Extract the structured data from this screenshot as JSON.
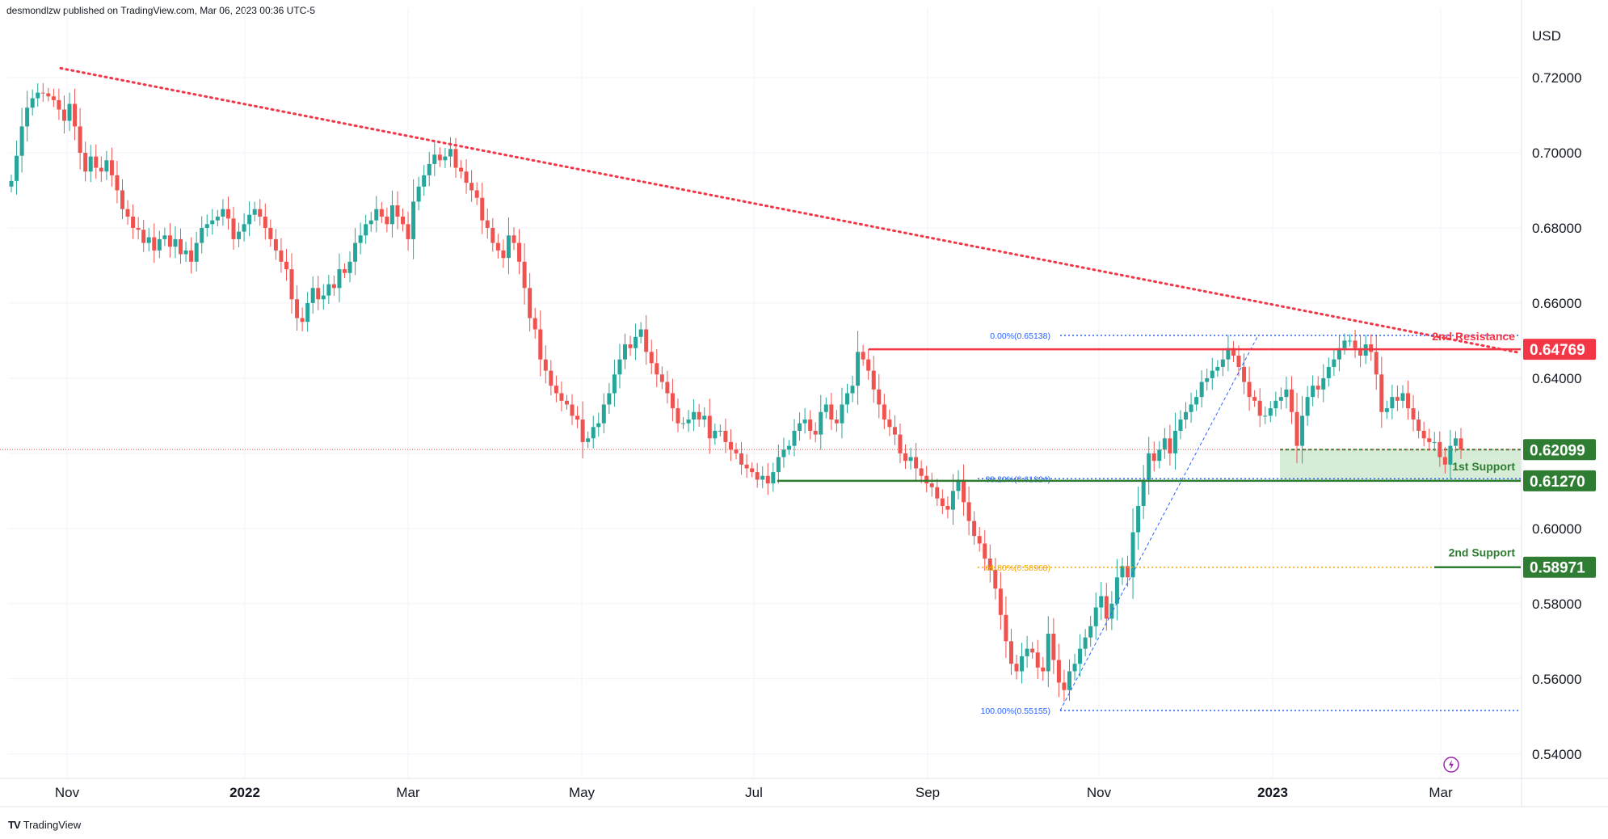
{
  "header": {
    "text": "desmondlzw published on TradingView.com, Mar 06, 2023 00:36 UTC-5"
  },
  "footer": {
    "logo": "TV",
    "brand": "TradingView"
  },
  "colors": {
    "up": "#26a69a",
    "down": "#ef5350",
    "resistance": "#f23645",
    "support": "#2e7d32",
    "fib": "#2962ff",
    "fib_golden": "#f7a600",
    "zone": "#c8e6c9",
    "grid": "#f0f3fa"
  },
  "chart_data": {
    "type": "candlestick",
    "currency_label": "USD",
    "y_ticks": [
      "0.72000",
      "0.70000",
      "0.68000",
      "0.66000",
      "0.64000",
      "0.62000",
      "0.60000",
      "0.58000",
      "0.56000",
      "0.54000"
    ],
    "ylim": [
      0.5335,
      0.7385
    ],
    "x_ticks": [
      "Nov",
      "2022",
      "Mar",
      "May",
      "Jul",
      "Sep",
      "Nov",
      "2023",
      "Mar"
    ],
    "x_ticks_bold": [
      "2022",
      "2023"
    ],
    "close_series": [
      0.6925,
      0.6992,
      0.707,
      0.712,
      0.7145,
      0.716,
      0.7158,
      0.715,
      0.714,
      0.7115,
      0.7085,
      0.713,
      0.707,
      0.7,
      0.695,
      0.699,
      0.696,
      0.695,
      0.698,
      0.694,
      0.69,
      0.685,
      0.683,
      0.68,
      0.6795,
      0.676,
      0.6775,
      0.674,
      0.677,
      0.678,
      0.675,
      0.677,
      0.673,
      0.674,
      0.671,
      0.676,
      0.68,
      0.681,
      0.682,
      0.683,
      0.685,
      0.6825,
      0.677,
      0.679,
      0.681,
      0.6835,
      0.685,
      0.683,
      0.68,
      0.677,
      0.674,
      0.671,
      0.669,
      0.661,
      0.656,
      0.655,
      0.66,
      0.664,
      0.661,
      0.662,
      0.665,
      0.664,
      0.669,
      0.668,
      0.671,
      0.676,
      0.678,
      0.681,
      0.682,
      0.685,
      0.683,
      0.681,
      0.686,
      0.683,
      0.681,
      0.677,
      0.687,
      0.691,
      0.694,
      0.697,
      0.6995,
      0.698,
      0.699,
      0.701,
      0.696,
      0.695,
      0.692,
      0.69,
      0.688,
      0.682,
      0.68,
      0.676,
      0.674,
      0.672,
      0.678,
      0.676,
      0.671,
      0.664,
      0.656,
      0.653,
      0.645,
      0.642,
      0.638,
      0.636,
      0.634,
      0.633,
      0.63,
      0.629,
      0.623,
      0.624,
      0.627,
      0.628,
      0.633,
      0.636,
      0.641,
      0.645,
      0.649,
      0.648,
      0.651,
      0.653,
      0.647,
      0.644,
      0.641,
      0.639,
      0.636,
      0.632,
      0.628,
      0.628,
      0.629,
      0.631,
      0.629,
      0.63,
      0.624,
      0.626,
      0.626,
      0.623,
      0.621,
      0.62,
      0.617,
      0.616,
      0.615,
      0.613,
      0.614,
      0.612,
      0.615,
      0.619,
      0.621,
      0.622,
      0.626,
      0.628,
      0.629,
      0.626,
      0.625,
      0.631,
      0.633,
      0.629,
      0.628,
      0.633,
      0.636,
      0.638,
      0.647,
      0.645,
      0.642,
      0.637,
      0.633,
      0.629,
      0.627,
      0.625,
      0.62,
      0.618,
      0.619,
      0.616,
      0.614,
      0.612,
      0.611,
      0.608,
      0.606,
      0.605,
      0.61,
      0.613,
      0.607,
      0.602,
      0.598,
      0.596,
      0.592,
      0.589,
      0.584,
      0.577,
      0.57,
      0.564,
      0.562,
      0.566,
      0.568,
      0.567,
      0.563,
      0.562,
      0.572,
      0.565,
      0.559,
      0.557,
      0.562,
      0.564,
      0.568,
      0.571,
      0.574,
      0.579,
      0.582,
      0.576,
      0.58,
      0.587,
      0.59,
      0.587,
      0.599,
      0.606,
      0.613,
      0.62,
      0.618,
      0.621,
      0.624,
      0.62,
      0.626,
      0.629,
      0.631,
      0.633,
      0.635,
      0.639,
      0.64,
      0.642,
      0.643,
      0.645,
      0.648,
      0.646,
      0.643,
      0.639,
      0.635,
      0.634,
      0.63,
      0.63,
      0.632,
      0.634,
      0.635,
      0.637,
      0.631,
      0.622,
      0.63,
      0.635,
      0.638,
      0.637,
      0.64,
      0.643,
      0.645,
      0.648,
      0.65,
      0.65,
      0.648,
      0.646,
      0.649,
      0.647,
      0.641,
      0.631,
      0.632,
      0.635,
      0.634,
      0.636,
      0.632,
      0.629,
      0.626,
      0.624,
      0.623,
      0.623,
      0.619,
      0.617,
      0.622,
      0.624,
      0.621
    ],
    "resistance_2nd": {
      "label": "2nd Resistance",
      "value": 0.64769,
      "tag": "0.64769"
    },
    "support_1st": {
      "label": "1st Support",
      "value": 0.6127,
      "tag": "0.61270"
    },
    "support_2nd": {
      "label": "2nd Support",
      "value": 0.58971,
      "tag": "0.58971"
    },
    "last_price": {
      "value": 0.62099,
      "tag": "0.62099"
    },
    "fib_levels": [
      {
        "label": "0.00%(0.65138)",
        "value": 0.65138
      },
      {
        "label": "38.20%(0.61324)",
        "value": 0.61324
      },
      {
        "label": "61.80%(0.58968)",
        "value": 0.58968
      },
      {
        "label": "100.00%(0.55155)",
        "value": 0.55155
      }
    ],
    "downtrend_line": {
      "start_value": 0.7225,
      "end_value": 0.6468
    }
  }
}
